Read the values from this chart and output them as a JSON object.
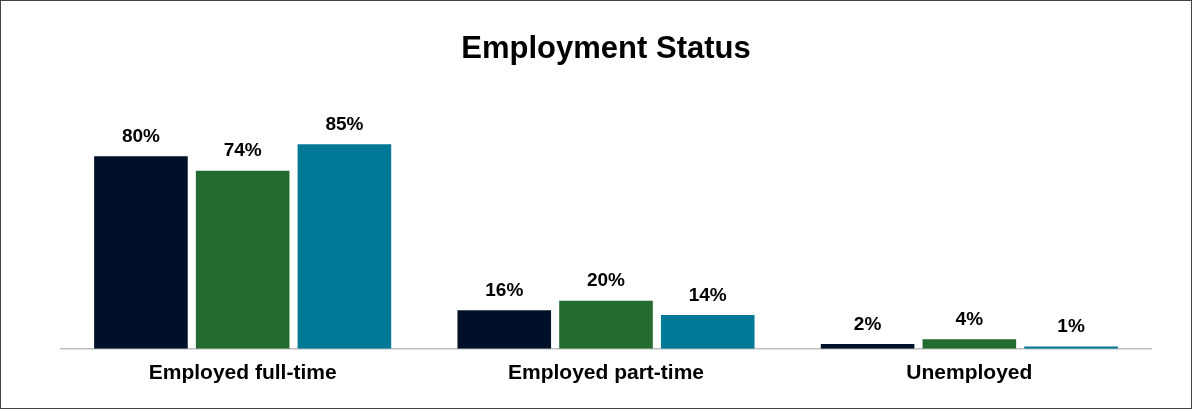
{
  "chart_data": {
    "type": "bar",
    "title": "Employment Status",
    "categories": [
      "Employed full-time",
      "Employed part-time",
      "Unemployed"
    ],
    "series": [
      {
        "color": "#001029",
        "values": [
          80,
          16,
          2
        ],
        "value_labels": [
          "80%",
          "16%",
          "2%"
        ]
      },
      {
        "color": "#236b2e",
        "values": [
          74,
          20,
          4
        ],
        "value_labels": [
          "74%",
          "20%",
          "4%"
        ]
      },
      {
        "color": "#007896",
        "values": [
          85,
          14,
          1
        ],
        "value_labels": [
          "85%",
          "14%",
          "1%"
        ]
      }
    ],
    "grid": false,
    "legend": false
  }
}
